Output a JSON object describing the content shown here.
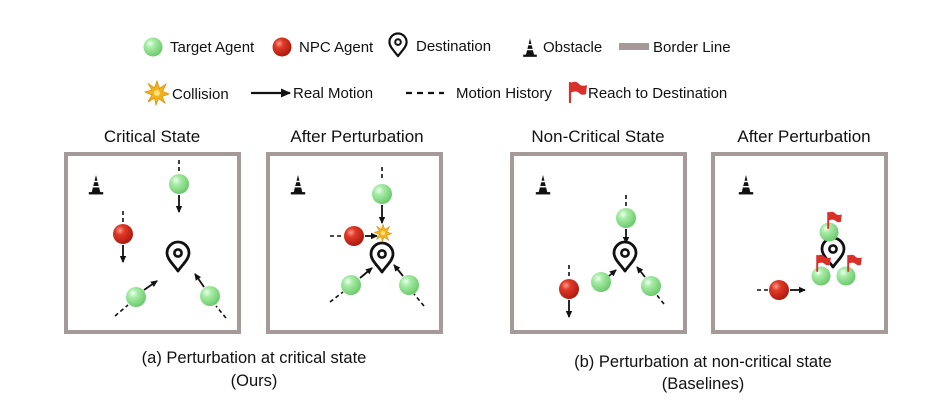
{
  "colors": {
    "target_agent": "#8ee08e",
    "npc_agent": "#d42a1c",
    "border": "#a6999a",
    "collision": "#f2b41c",
    "flag": "#d9302a"
  },
  "legend": {
    "target_agent": "Target Agent",
    "npc_agent": "NPC Agent",
    "destination": "Destination",
    "obstacle": "Obstacle",
    "border_line": "Border Line",
    "collision": "Collision",
    "real_motion": "Real Motion",
    "motion_history": "Motion History",
    "reach": "Reach to Destination"
  },
  "panels": [
    {
      "title": "Critical State"
    },
    {
      "title": "After Perturbation"
    },
    {
      "title": "Non-Critical State"
    },
    {
      "title": "After Perturbation"
    }
  ],
  "captions": {
    "a_line1": "(a) Perturbation at critical state",
    "a_line2": "(Ours)",
    "b_line1": "(b) Perturbation at non-critical state",
    "b_line2": "(Baselines)"
  },
  "icons": {
    "target_agent": "green-sphere-icon",
    "npc_agent": "red-sphere-icon",
    "destination": "location-pin-icon",
    "obstacle": "cone-icon",
    "collision": "starburst-icon",
    "reach": "red-flag-icon"
  }
}
